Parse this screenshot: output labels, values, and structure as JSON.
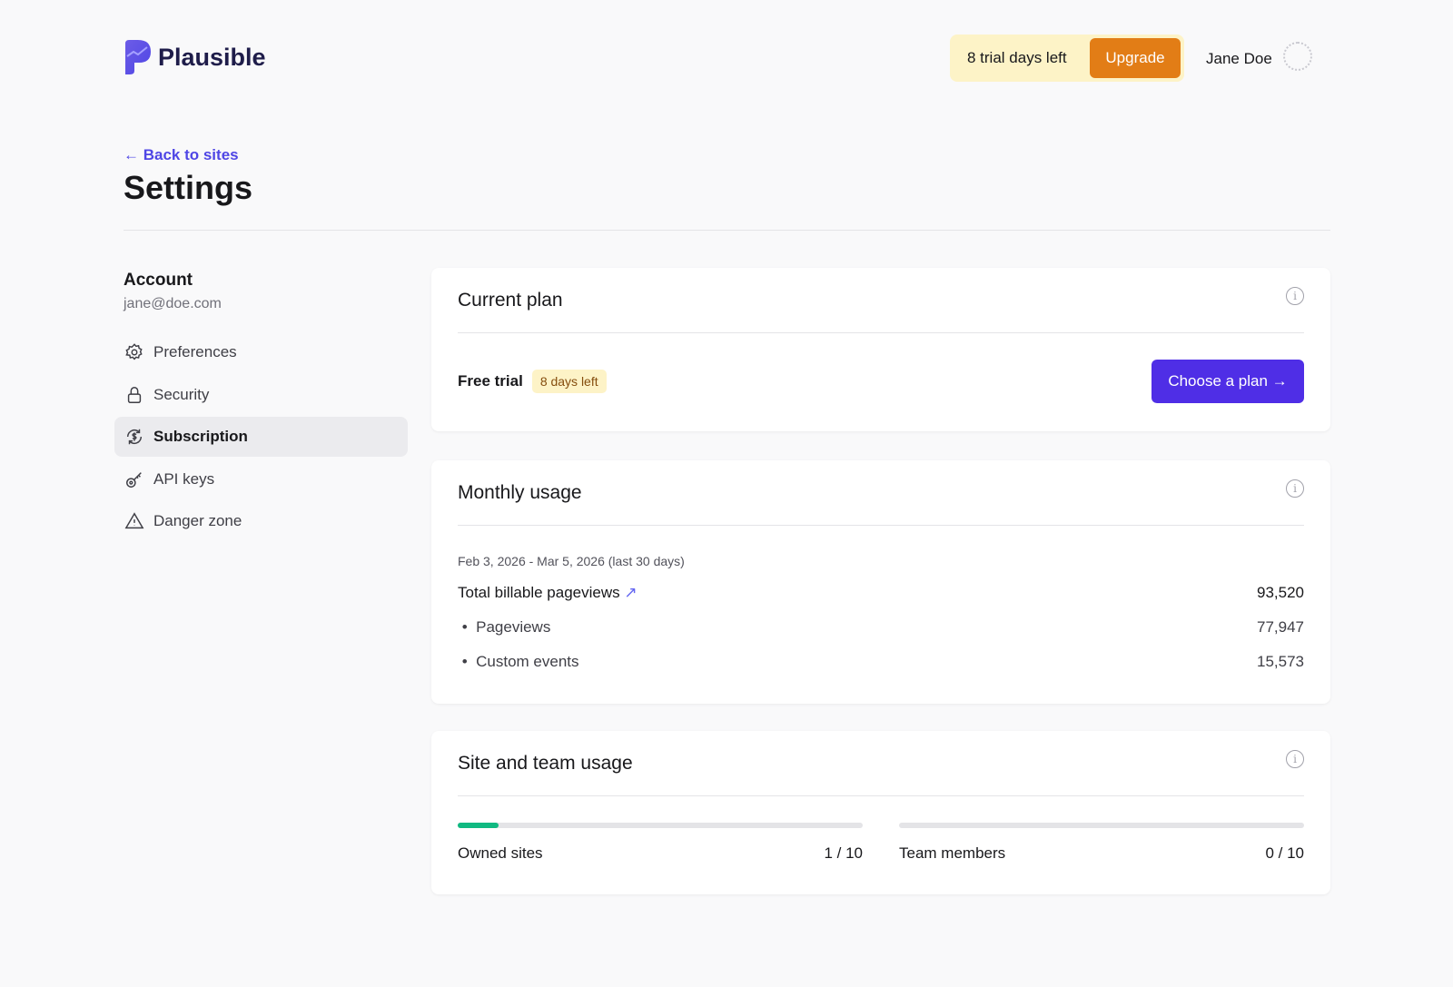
{
  "header": {
    "brand": "Plausible",
    "trial_text": "8 trial days left",
    "upgrade_label": "Upgrade",
    "user_name": "Jane Doe"
  },
  "page": {
    "back_label": "← Back to sites",
    "title": "Settings"
  },
  "sidebar": {
    "account_label": "Account",
    "email": "jane@doe.com",
    "items": [
      {
        "label": "Preferences",
        "icon": "gear-icon"
      },
      {
        "label": "Security",
        "icon": "lock-icon"
      },
      {
        "label": "Subscription",
        "icon": "dollar-cycle-icon",
        "active": true
      },
      {
        "label": "API keys",
        "icon": "key-icon"
      },
      {
        "label": "Danger zone",
        "icon": "warning-icon"
      }
    ]
  },
  "current_plan": {
    "title": "Current plan",
    "plan": "Free trial",
    "badge": "8 days left",
    "cta": "Choose a plan →"
  },
  "monthly_usage": {
    "title": "Monthly usage",
    "range": "Feb 3, 2026 - Mar 5, 2026 (last 30 days)",
    "total_label": "Total billable pageviews",
    "total": "93,520",
    "pageviews_label": "Pageviews",
    "pageviews": "77,947",
    "events_label": "Custom events",
    "events": "15,573"
  },
  "site_team": {
    "title": "Site and team usage",
    "sites_label": "Owned sites",
    "sites": "1 / 10",
    "sites_fraction": 0.1,
    "members_label": "Team members",
    "members": "0 / 10",
    "members_fraction": 0
  },
  "colors": {
    "accent": "#4f2ee6",
    "upgrade": "#e27d16",
    "progress": "#10b981"
  }
}
